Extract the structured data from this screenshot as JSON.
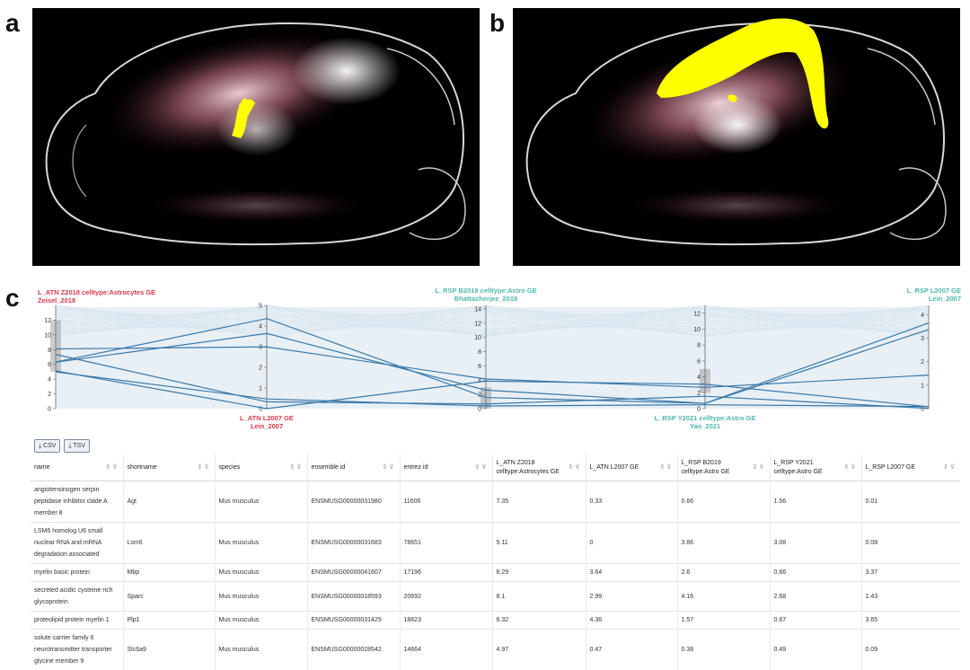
{
  "panels": {
    "a": "a",
    "b": "b",
    "c": "c"
  },
  "colors": {
    "highlight": "#ffff00",
    "pink_axis": "#d9374f",
    "teal_axis": "#4fb7ad",
    "line": "#3a78a8",
    "background_lines": "#dbe7f0"
  },
  "parallel_coordinates": {
    "axes": [
      {
        "label_line1": "L_ATN Z2018 celltype:Astrocytes GE",
        "label_line2": "Zeisel_2018",
        "ticks": [
          "0",
          "2",
          "4",
          "6",
          "8",
          "10",
          "12"
        ]
      },
      {
        "label_line1": "L_ATN L2007 GE",
        "label_line2": "Lein_2007",
        "ticks": [
          "0",
          "1",
          "2",
          "3",
          "4",
          "5"
        ]
      },
      {
        "label_line1": "L_RSP B2019 celltype:Astro GE",
        "label_line2": "Bhattacherjee_2019",
        "ticks": [
          "0",
          "2",
          "4",
          "6",
          "8",
          "10",
          "12",
          "14"
        ]
      },
      {
        "label_line1": "L_RSP Y2021 celltype:Astro GE",
        "label_line2": "Yao_2021",
        "ticks": [
          "0",
          "2",
          "4",
          "6",
          "8",
          "10",
          "12"
        ]
      },
      {
        "label_line1": "L_RSP L2007 GE",
        "label_line2": "Lein_2007",
        "ticks": [
          "0",
          "1",
          "2",
          "3",
          "4"
        ]
      }
    ]
  },
  "toolbar": {
    "csv": "CSV",
    "tsv": "TSV"
  },
  "table": {
    "columns": [
      {
        "l1": "name",
        "l2": ""
      },
      {
        "l1": "shortname",
        "l2": ""
      },
      {
        "l1": "species",
        "l2": ""
      },
      {
        "l1": "ensemble id",
        "l2": ""
      },
      {
        "l1": "entrez id",
        "l2": ""
      },
      {
        "l1": "L_ATN Z2018",
        "l2": "celltype:Astrocytes GE"
      },
      {
        "l1": "L_ATN L2007 GE",
        "l2": ""
      },
      {
        "l1": "L_RSP B2019",
        "l2": "celltype:Astro GE"
      },
      {
        "l1": "L_RSP Y2021",
        "l2": "celltype:Astro GE"
      },
      {
        "l1": "L_RSP L2007 GE",
        "l2": ""
      }
    ],
    "rows": [
      [
        "angiotensinogen serpin peptidase inhibitor clade A member 8",
        "Agt",
        "Mus musculus",
        "ENSMUSG00000031980",
        "11606",
        "7.35",
        "0.33",
        "0.66",
        "1.56",
        "0.01"
      ],
      [
        "LSM6 homolog U6 small nuclear RNA and mRNA degradation associated",
        "Lsm6",
        "Mus musculus",
        "ENSMUSG00000031683",
        "78651",
        "5.11",
        "0",
        "3.86",
        "3.08",
        "0.08"
      ],
      [
        "myelin basic protein",
        "Mbp",
        "Mus musculus",
        "ENSMUSG00000041607",
        "17196",
        "6.29",
        "3.64",
        "2.6",
        "0.66",
        "3.37"
      ],
      [
        "secreted acidic cysteine rich glycoprotein",
        "Sparc",
        "Mus musculus",
        "ENSMUSG00000018593",
        "20692",
        "8.1",
        "2.99",
        "4.16",
        "2.68",
        "1.43"
      ],
      [
        "proteolipid protein myelin 1",
        "Plp1",
        "Mus musculus",
        "ENSMUSG00000031425",
        "18823",
        "6.32",
        "4.36",
        "1.57",
        "0.67",
        "3.65"
      ],
      [
        "solute carrier family 6 neurotransmitter transporter glycine member 9",
        "Slc6a9",
        "Mus musculus",
        "ENSMUSG00000028542",
        "14664",
        "4.97",
        "0.47",
        "0.38",
        "0.49",
        "0.09"
      ]
    ]
  }
}
